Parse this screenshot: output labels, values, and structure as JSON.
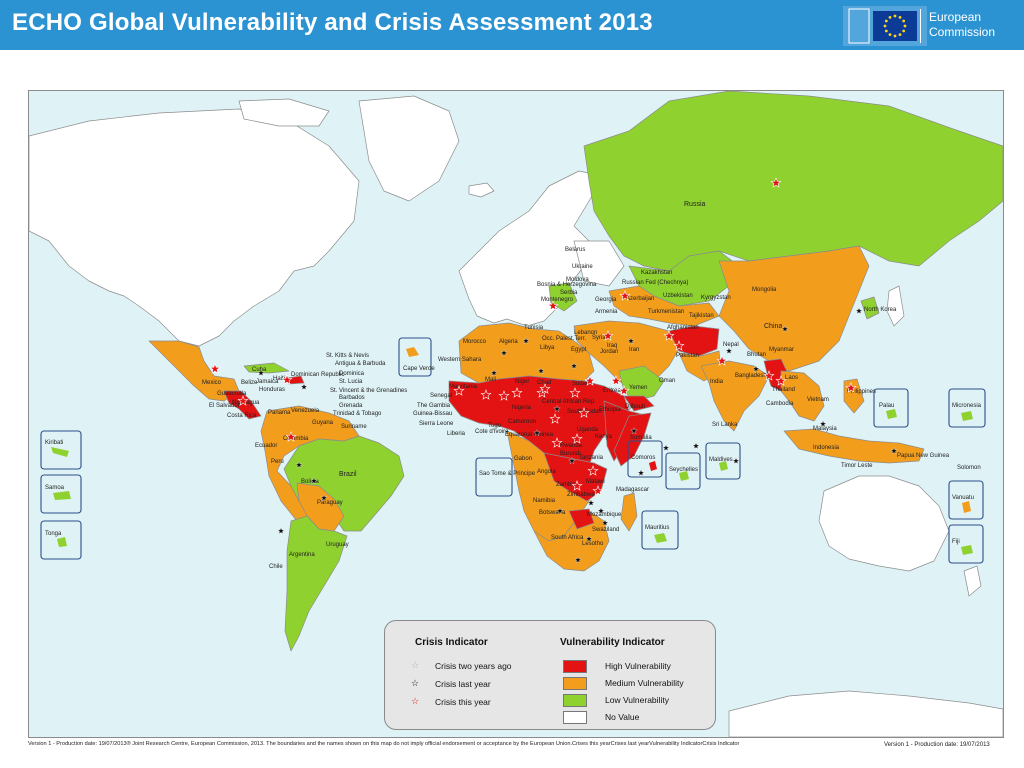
{
  "header": {
    "title": "ECHO Global Vulnerability and Crisis Assessment 2013",
    "logo_line1": "European",
    "logo_line2": "Commission"
  },
  "colors": {
    "header": "#2c93d3",
    "ocean": "#dff3f7",
    "high": "#e41313",
    "medium": "#f39d1d",
    "low": "#8fd12f",
    "no_value": "#ffffff",
    "land_border": "#8c8c8c"
  },
  "map": {
    "labels": [
      {
        "id": "russia",
        "text": "Russia"
      },
      {
        "id": "kazakhstan",
        "text": "Kazakhstan"
      },
      {
        "id": "mongolia",
        "text": "Mongolia"
      },
      {
        "id": "china",
        "text": "China"
      },
      {
        "id": "north-korea",
        "text": "North Korea"
      },
      {
        "id": "belarus",
        "text": "Belarus"
      },
      {
        "id": "ukraine",
        "text": "Ukraine"
      },
      {
        "id": "moldova",
        "text": "Moldova"
      },
      {
        "id": "bosnia",
        "text": "Bosnia & Herzegovina"
      },
      {
        "id": "serbia",
        "text": "Serbia"
      },
      {
        "id": "montenegro",
        "text": "Montenegro"
      },
      {
        "id": "georgia",
        "text": "Georgia"
      },
      {
        "id": "armenia",
        "text": "Armenia"
      },
      {
        "id": "azerbaijan",
        "text": "Azerbaijan"
      },
      {
        "id": "russian-fed",
        "text": "Russian Fed (Chechnya)"
      },
      {
        "id": "uzbekistan",
        "text": "Uzbekistan"
      },
      {
        "id": "kyrgyzstan",
        "text": "Kyrgyzstan"
      },
      {
        "id": "turkmenistan",
        "text": "Turkmenistan"
      },
      {
        "id": "tajikistan",
        "text": "Tajikistan"
      },
      {
        "id": "afghanistan",
        "text": "Afghanistan"
      },
      {
        "id": "pakistan",
        "text": "Pakistan"
      },
      {
        "id": "nepal",
        "text": "Nepal"
      },
      {
        "id": "bhutan",
        "text": "Bhutan"
      },
      {
        "id": "india",
        "text": "India"
      },
      {
        "id": "bangladesh",
        "text": "Bangladesh"
      },
      {
        "id": "myanmar",
        "text": "Myanmar"
      },
      {
        "id": "laos",
        "text": "Laos"
      },
      {
        "id": "thailand",
        "text": "Thailand"
      },
      {
        "id": "cambodia",
        "text": "Cambodia"
      },
      {
        "id": "vietnam",
        "text": "Vietnam"
      },
      {
        "id": "philippines",
        "text": "Philippines"
      },
      {
        "id": "malaysia",
        "text": "Malaysia"
      },
      {
        "id": "indonesia",
        "text": "Indonesia"
      },
      {
        "id": "timor-leste",
        "text": "Timor Leste"
      },
      {
        "id": "papua",
        "text": "Papua New Guinea"
      },
      {
        "id": "solomon",
        "text": "Solomon"
      },
      {
        "id": "sri-lanka",
        "text": "Sri Lanka"
      },
      {
        "id": "tunisia",
        "text": "Tunisia"
      },
      {
        "id": "morocco",
        "text": "Morocco"
      },
      {
        "id": "algeria",
        "text": "Algeria"
      },
      {
        "id": "libya",
        "text": "Libya"
      },
      {
        "id": "egypt",
        "text": "Egypt"
      },
      {
        "id": "lebanon",
        "text": "Lebanon"
      },
      {
        "id": "syria",
        "text": "Syria"
      },
      {
        "id": "iraq",
        "text": "Iraq"
      },
      {
        "id": "iran",
        "text": "Iran"
      },
      {
        "id": "jordan",
        "text": "Jordan"
      },
      {
        "id": "occ-pal",
        "text": "Occ. Palest.Terr."
      },
      {
        "id": "yemen",
        "text": "Yemen"
      },
      {
        "id": "oman",
        "text": "Oman"
      },
      {
        "id": "western-sahara",
        "text": "Western Sahara"
      },
      {
        "id": "mauritania",
        "text": "Mauritania"
      },
      {
        "id": "mali",
        "text": "Mali"
      },
      {
        "id": "niger",
        "text": "Niger"
      },
      {
        "id": "chad",
        "text": "Chad"
      },
      {
        "id": "sudan",
        "text": "Sudan"
      },
      {
        "id": "eritrea",
        "text": "Eritrea"
      },
      {
        "id": "djibouti",
        "text": "Djibouti"
      },
      {
        "id": "ethiopia",
        "text": "Ethiopia"
      },
      {
        "id": "somalia",
        "text": "Somalia"
      },
      {
        "id": "senegal",
        "text": "Senegal"
      },
      {
        "id": "gambia",
        "text": "The Gambia"
      },
      {
        "id": "guinea-bissau",
        "text": "Guinea-Bissau"
      },
      {
        "id": "sierra-leone",
        "text": "Sierra Leone"
      },
      {
        "id": "liberia",
        "text": "Liberia"
      },
      {
        "id": "cote-divoire",
        "text": "Cote d'Ivoire"
      },
      {
        "id": "togo",
        "text": "Togo"
      },
      {
        "id": "nigeria",
        "text": "Nigeria"
      },
      {
        "id": "cameroon",
        "text": "Cameroon"
      },
      {
        "id": "equatorial-guinea",
        "text": "Equatorial Guinea"
      },
      {
        "id": "gabon",
        "text": "Gabon"
      },
      {
        "id": "car",
        "text": "Central African Rep."
      },
      {
        "id": "south-sudan",
        "text": "South Sudan"
      },
      {
        "id": "uganda",
        "text": "Uganda"
      },
      {
        "id": "kenya",
        "text": "Kenya"
      },
      {
        "id": "rwanda",
        "text": "Rwanda"
      },
      {
        "id": "burundi",
        "text": "Burundi"
      },
      {
        "id": "tanzania",
        "text": "Tanzania"
      },
      {
        "id": "angola",
        "text": "Angola"
      },
      {
        "id": "zambia",
        "text": "Zambia"
      },
      {
        "id": "zimbabwe",
        "text": "Zimbabwe"
      },
      {
        "id": "malawi",
        "text": "Malawi"
      },
      {
        "id": "mozambique",
        "text": "Mozambique"
      },
      {
        "id": "madagascar",
        "text": "Madagascar"
      },
      {
        "id": "namibia",
        "text": "Namibia"
      },
      {
        "id": "botswana",
        "text": "Botswana"
      },
      {
        "id": "south-africa",
        "text": "South Africa"
      },
      {
        "id": "swaziland",
        "text": "Swaziland"
      },
      {
        "id": "lesotho",
        "text": "Lesotho"
      },
      {
        "id": "mexico",
        "text": "Mexico"
      },
      {
        "id": "cuba",
        "text": "Cuba"
      },
      {
        "id": "jamaica",
        "text": "Jamaica"
      },
      {
        "id": "haiti",
        "text": "Haiti"
      },
      {
        "id": "dominican-republic",
        "text": "Dominican Republic"
      },
      {
        "id": "belize",
        "text": "Belize"
      },
      {
        "id": "guatemala",
        "text": "Guatemala"
      },
      {
        "id": "honduras",
        "text": "Honduras"
      },
      {
        "id": "el-salvador",
        "text": "El Salvador"
      },
      {
        "id": "nicaragua",
        "text": "Nicaragua"
      },
      {
        "id": "costa-rica",
        "text": "Costa Rica"
      },
      {
        "id": "panama",
        "text": "Panama"
      },
      {
        "id": "venezuela",
        "text": "Venezuela"
      },
      {
        "id": "guyana",
        "text": "Guyana"
      },
      {
        "id": "suriname",
        "text": "Suriname"
      },
      {
        "id": "colombia",
        "text": "Colombia"
      },
      {
        "id": "ecuador",
        "text": "Ecuador"
      },
      {
        "id": "peru",
        "text": "Peru"
      },
      {
        "id": "brazil",
        "text": "Brazil"
      },
      {
        "id": "bolivia",
        "text": "Bolivia"
      },
      {
        "id": "paraguay",
        "text": "Paraguay"
      },
      {
        "id": "uruguay",
        "text": "Uruguay"
      },
      {
        "id": "argentina",
        "text": "Argentina"
      },
      {
        "id": "chile",
        "text": "Chile"
      },
      {
        "id": "st-kitts",
        "text": "St. Kitts & Nevis"
      },
      {
        "id": "antigua",
        "text": "Antigua & Barbuda"
      },
      {
        "id": "dominica",
        "text": "Dominica"
      },
      {
        "id": "st-lucia",
        "text": "St. Lucia"
      },
      {
        "id": "st-vincent",
        "text": "St. Vincent & the Grenadines"
      },
      {
        "id": "barbados",
        "text": "Barbados"
      },
      {
        "id": "grenada",
        "text": "Grenada"
      },
      {
        "id": "trinidad",
        "text": "Trinidad & Tobago"
      }
    ],
    "insets": [
      {
        "id": "cape-verde",
        "label": "Cape Verde"
      },
      {
        "id": "kiribati",
        "label": "Kiribati"
      },
      {
        "id": "samoa",
        "label": "Samoa"
      },
      {
        "id": "tonga",
        "label": "Tonga"
      },
      {
        "id": "sao-tome",
        "label": "Sao Tome & Principe"
      },
      {
        "id": "comoros",
        "label": "Comoros"
      },
      {
        "id": "seychelles",
        "label": "Seychelles"
      },
      {
        "id": "maldives",
        "label": "Maldives"
      },
      {
        "id": "mauritius",
        "label": "Mauritius"
      },
      {
        "id": "palau",
        "label": "Palau"
      },
      {
        "id": "micronesia",
        "label": "Micronesia"
      },
      {
        "id": "vanuatu",
        "label": "Vanuatu"
      },
      {
        "id": "fiji",
        "label": "Fiji"
      }
    ]
  },
  "legend": {
    "crisis_title": "Crisis Indicator",
    "vuln_title": "Vulnerability Indicator",
    "crisis_items": [
      {
        "label": "Crisis two years ago",
        "color": "#b0b0b0"
      },
      {
        "label": "Crisis last year",
        "color": "#111111"
      },
      {
        "label": "Crisis this year",
        "color": "#e41313"
      }
    ],
    "vuln_items": [
      {
        "label": "High Vulnerability",
        "color": "#e41313"
      },
      {
        "label": "Medium Vulnerability",
        "color": "#f39d1d"
      },
      {
        "label": "Low Vulnerability",
        "color": "#8fd12f"
      },
      {
        "label": "No Value",
        "color": "#ffffff"
      }
    ]
  },
  "footer": {
    "left": "Version 1 - Production date: 19/07/2013® Joint Research Centre, European Commission, 2013. The boundaries and the names shown on this map do not imply official endorsement or acceptance by the European Union.Crises this yearCrises last yearVulnerability IndicatorCrisis Indicator",
    "right": "Version 1 - Production date: 19/07/2013"
  }
}
